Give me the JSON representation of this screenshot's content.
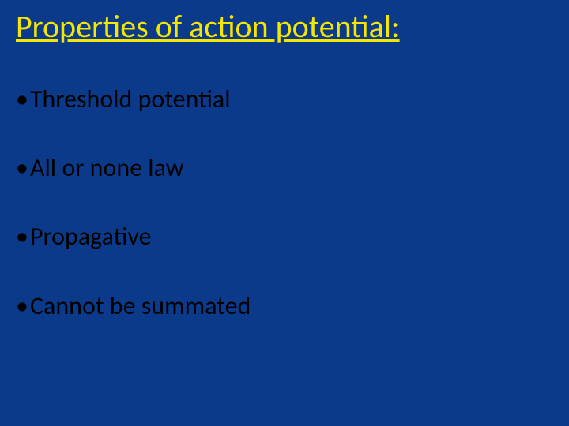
{
  "slide": {
    "background_color": "#0b3a8a",
    "title": {
      "text": "Properties of action potential:",
      "color": "#f5e600",
      "fontsize_pt": 40,
      "underline": true
    },
    "bullet_color": "#000000",
    "bullet_fontsize_pt": 32,
    "bullets": [
      "Threshold potential",
      "All or none law",
      "Propagative",
      "Cannot be summated"
    ]
  }
}
